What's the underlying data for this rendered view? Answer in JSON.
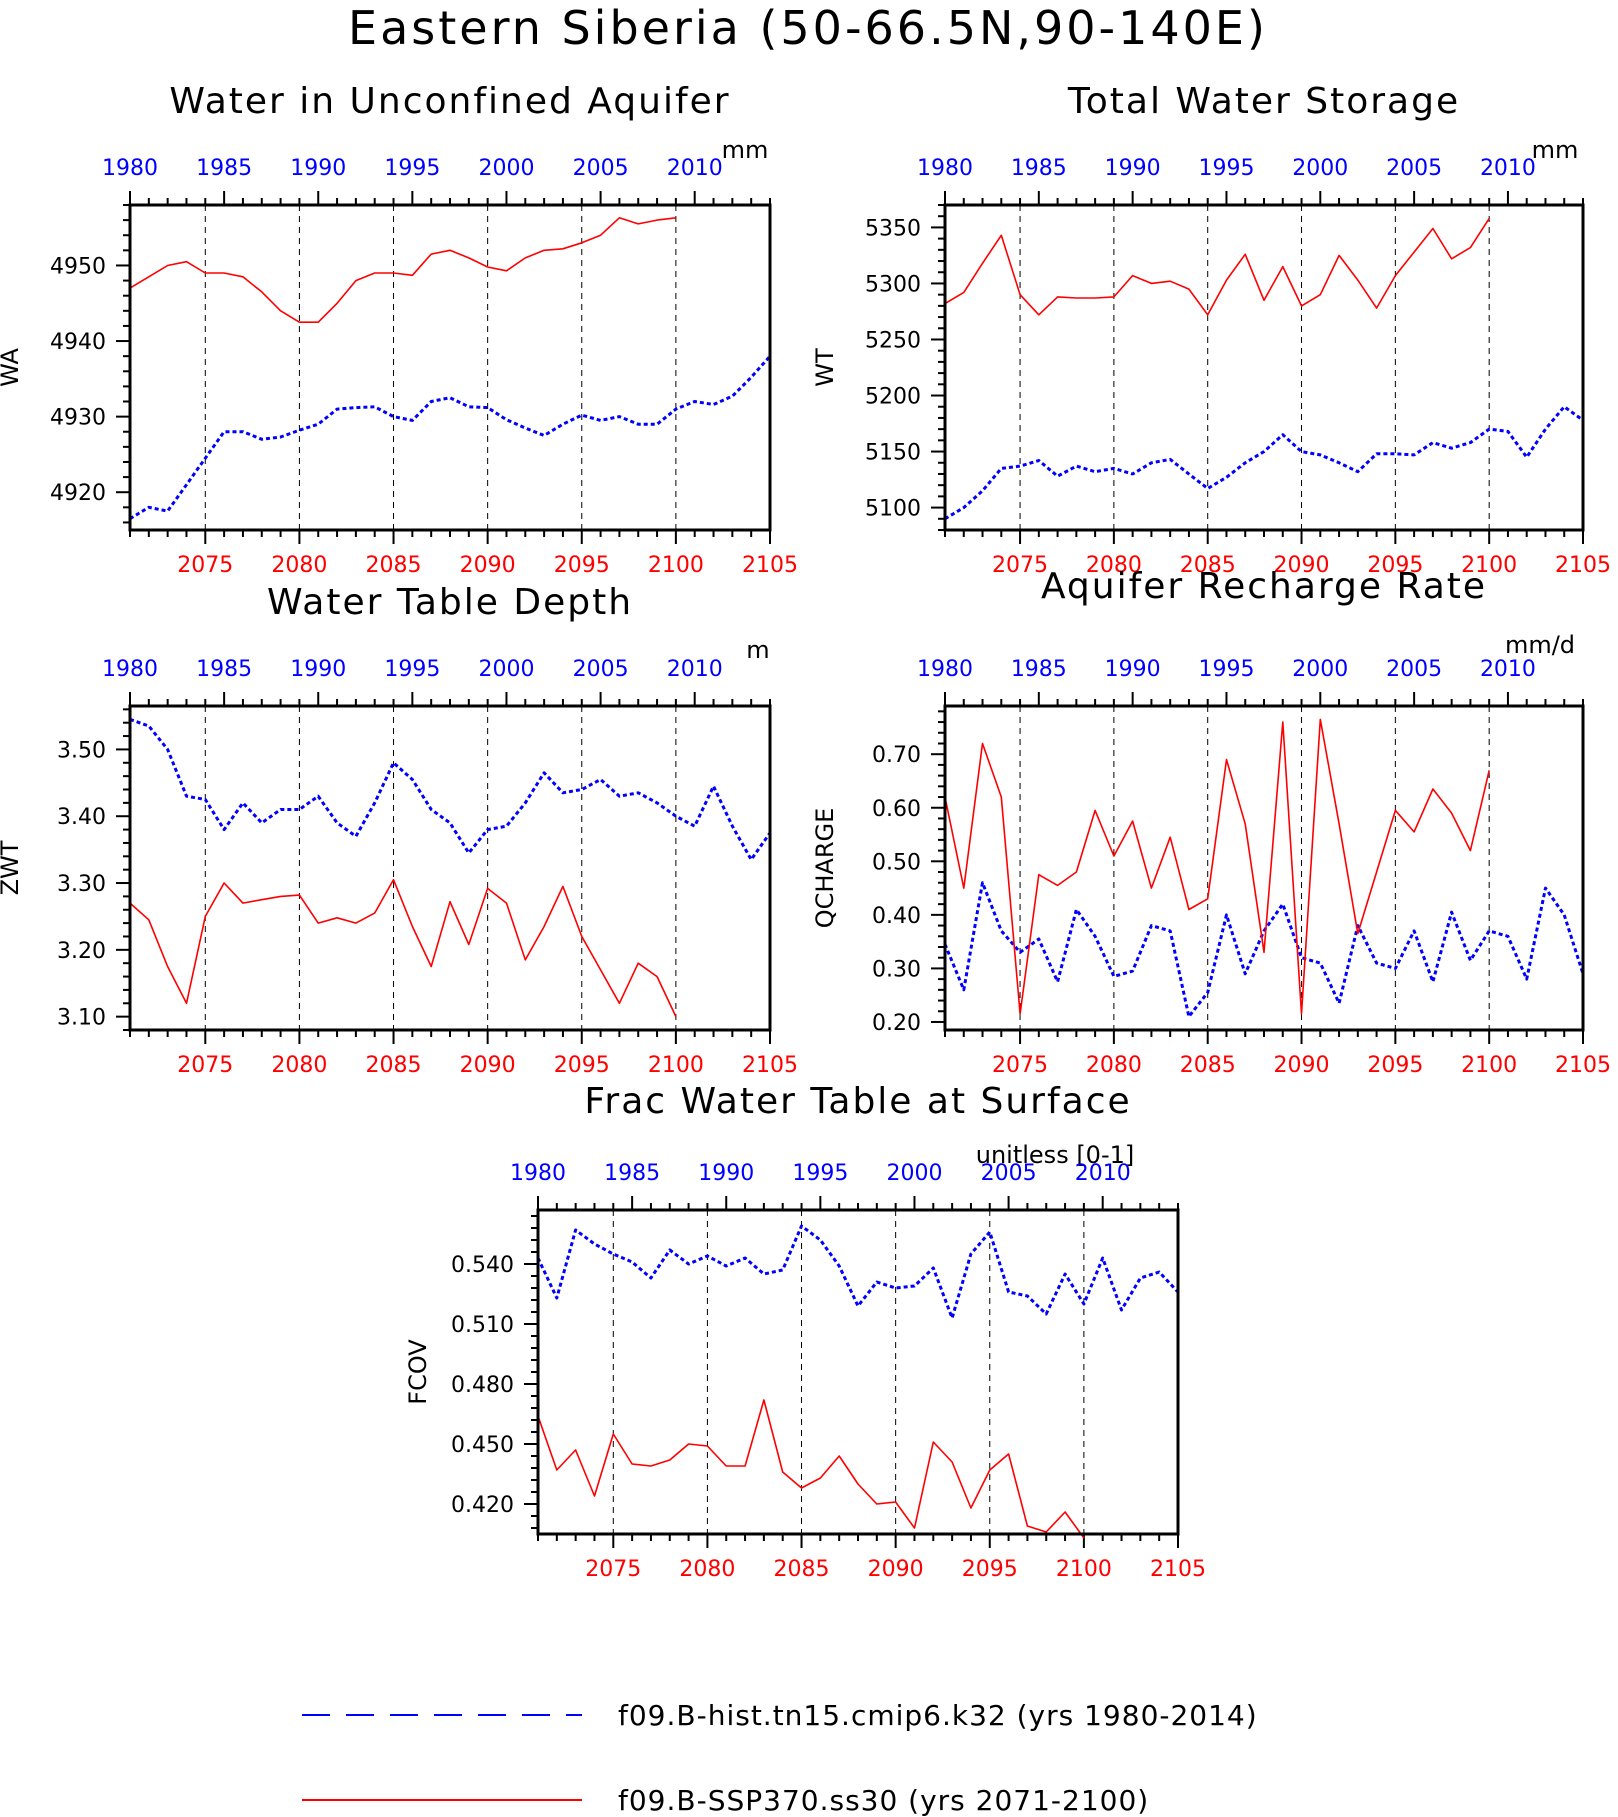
{
  "title": "Eastern Siberia (50-66.5N,90-140E)",
  "colors": {
    "hist": "#0000ff",
    "ssp": "#ff0000",
    "frame": "#000000",
    "grid": "#000000"
  },
  "legend": {
    "hist_label": "f09.B-hist.tn15.cmip6.k32 (yrs 1980-2014)",
    "ssp_label": "f09.B-SSP370.ss30 (yrs 2071-2100)"
  },
  "chart_data": [
    {
      "type": "line",
      "title": "Water in Unconfined Aquifer",
      "ylabel": "WA",
      "units": "mm",
      "xlim_bottom": [
        2071,
        2105
      ],
      "xlim_top": [
        1980,
        2014
      ],
      "ylim": [
        4915,
        4958
      ],
      "yticks": [
        4920,
        4930,
        4940,
        4950
      ],
      "ydecimals": 0,
      "grid": "dashed vertical at bottom-axis major ticks",
      "series": [
        {
          "name": "f09.B-hist.tn15.cmip6.k32 (yrs 1980-2014)",
          "axis": "top",
          "style": "dotted",
          "x": [
            1980,
            1981,
            1982,
            1983,
            1984,
            1985,
            1986,
            1987,
            1988,
            1989,
            1990,
            1991,
            1992,
            1993,
            1994,
            1995,
            1996,
            1997,
            1998,
            1999,
            2000,
            2001,
            2002,
            2003,
            2004,
            2005,
            2006,
            2007,
            2008,
            2009,
            2010,
            2011,
            2012,
            2013,
            2014
          ],
          "values": [
            4916.5,
            4918.0,
            4917.5,
            4921.0,
            4924.5,
            4928.0,
            4928.0,
            4927.0,
            4927.3,
            4928.2,
            4929.0,
            4931.0,
            4931.2,
            4931.3,
            4930.0,
            4929.5,
            4932.0,
            4932.5,
            4931.3,
            4931.2,
            4929.6,
            4928.5,
            4927.5,
            4929.0,
            4930.2,
            4929.5,
            4930.0,
            4929.0,
            4929.0,
            4931.0,
            4932.0,
            4931.6,
            4932.7,
            4935.2,
            4938.0
          ]
        },
        {
          "name": "f09.B-SSP370.ss30 (yrs 2071-2100)",
          "axis": "bottom",
          "style": "solid",
          "x": [
            2071,
            2072,
            2073,
            2074,
            2075,
            2076,
            2077,
            2078,
            2079,
            2080,
            2081,
            2082,
            2083,
            2084,
            2085,
            2086,
            2087,
            2088,
            2089,
            2090,
            2091,
            2092,
            2093,
            2094,
            2095,
            2096,
            2097,
            2098,
            2099,
            2100
          ],
          "values": [
            4947.0,
            4948.5,
            4950.0,
            4950.5,
            4949.0,
            4949.0,
            4948.5,
            4946.5,
            4944.0,
            4942.5,
            4942.5,
            4945.0,
            4948.0,
            4949.0,
            4949.0,
            4948.7,
            4951.5,
            4952.0,
            4951.0,
            4949.8,
            4949.3,
            4951.0,
            4952.0,
            4952.2,
            4953.0,
            4954.0,
            4956.3,
            4955.5,
            4956.0,
            4956.3
          ]
        }
      ]
    },
    {
      "type": "line",
      "title": "Total Water Storage",
      "ylabel": "WT",
      "units": "mm",
      "xlim_bottom": [
        2071,
        2105
      ],
      "xlim_top": [
        1980,
        2014
      ],
      "ylim": [
        5080,
        5370
      ],
      "yticks": [
        5100,
        5150,
        5200,
        5250,
        5300,
        5350
      ],
      "ydecimals": 0,
      "grid": "dashed vertical at bottom-axis major ticks",
      "series": [
        {
          "name": "f09.B-hist.tn15.cmip6.k32 (yrs 1980-2014)",
          "axis": "top",
          "style": "dotted",
          "x": [
            1980,
            1981,
            1982,
            1983,
            1984,
            1985,
            1986,
            1987,
            1988,
            1989,
            1990,
            1991,
            1992,
            1993,
            1994,
            1995,
            1996,
            1997,
            1998,
            1999,
            2000,
            2001,
            2002,
            2003,
            2004,
            2005,
            2006,
            2007,
            2008,
            2009,
            2010,
            2011,
            2012,
            2013,
            2014
          ],
          "values": [
            5090,
            5100,
            5115,
            5135,
            5137,
            5142,
            5128,
            5137,
            5132,
            5135,
            5130,
            5140,
            5143,
            5130,
            5117,
            5127,
            5140,
            5150,
            5165,
            5150,
            5147,
            5140,
            5132,
            5148,
            5148,
            5147,
            5158,
            5153,
            5158,
            5170,
            5168,
            5145,
            5170,
            5190,
            5178
          ]
        },
        {
          "name": "f09.B-SSP370.ss30 (yrs 2071-2100)",
          "axis": "bottom",
          "style": "solid",
          "x": [
            2071,
            2072,
            2073,
            2074,
            2075,
            2076,
            2077,
            2078,
            2079,
            2080,
            2081,
            2082,
            2083,
            2084,
            2085,
            2086,
            2087,
            2088,
            2089,
            2090,
            2091,
            2092,
            2093,
            2094,
            2095,
            2096,
            2097,
            2098,
            2099,
            2100
          ],
          "values": [
            5282,
            5292,
            5318,
            5343,
            5290,
            5272,
            5288,
            5287,
            5287,
            5288,
            5307,
            5300,
            5302,
            5295,
            5272,
            5303,
            5326,
            5285,
            5315,
            5280,
            5290,
            5325,
            5303,
            5278,
            5307,
            5328,
            5349,
            5322,
            5332,
            5358
          ]
        }
      ]
    },
    {
      "type": "line",
      "title": "Water Table Depth",
      "ylabel": "ZWT",
      "units": "m",
      "xlim_bottom": [
        2071,
        2105
      ],
      "xlim_top": [
        1980,
        2014
      ],
      "ylim": [
        3.08,
        3.565
      ],
      "yticks": [
        3.1,
        3.2,
        3.3,
        3.4,
        3.5
      ],
      "ydecimals": 2,
      "grid": "dashed vertical at bottom-axis major ticks",
      "series": [
        {
          "name": "f09.B-hist.tn15.cmip6.k32 (yrs 1980-2014)",
          "axis": "top",
          "style": "dotted",
          "x": [
            1980,
            1981,
            1982,
            1983,
            1984,
            1985,
            1986,
            1987,
            1988,
            1989,
            1990,
            1991,
            1992,
            1993,
            1994,
            1995,
            1996,
            1997,
            1998,
            1999,
            2000,
            2001,
            2002,
            2003,
            2004,
            2005,
            2006,
            2007,
            2008,
            2009,
            2010,
            2011,
            2012,
            2013,
            2014
          ],
          "values": [
            3.545,
            3.535,
            3.5,
            3.43,
            3.425,
            3.38,
            3.42,
            3.39,
            3.41,
            3.41,
            3.43,
            3.39,
            3.37,
            3.42,
            3.48,
            3.455,
            3.41,
            3.39,
            3.345,
            3.38,
            3.385,
            3.42,
            3.465,
            3.435,
            3.44,
            3.455,
            3.43,
            3.435,
            3.42,
            3.4,
            3.385,
            3.445,
            3.385,
            3.335,
            3.375
          ]
        },
        {
          "name": "f09.B-SSP370.ss30 (yrs 2071-2100)",
          "axis": "bottom",
          "style": "solid",
          "x": [
            2071,
            2072,
            2073,
            2074,
            2075,
            2076,
            2077,
            2078,
            2079,
            2080,
            2081,
            2082,
            2083,
            2084,
            2085,
            2086,
            2087,
            2088,
            2089,
            2090,
            2091,
            2092,
            2093,
            2094,
            2095,
            2096,
            2097,
            2098,
            2099,
            2100
          ],
          "values": [
            3.27,
            3.245,
            3.175,
            3.12,
            3.25,
            3.3,
            3.27,
            3.275,
            3.28,
            3.282,
            3.24,
            3.248,
            3.24,
            3.255,
            3.305,
            3.235,
            3.175,
            3.272,
            3.208,
            3.292,
            3.27,
            3.185,
            3.235,
            3.295,
            3.22,
            3.17,
            3.12,
            3.18,
            3.16,
            3.1
          ]
        }
      ]
    },
    {
      "type": "line",
      "title": "Aquifer Recharge Rate",
      "ylabel": "QCHARGE",
      "units": "mm/d",
      "xlim_bottom": [
        2071,
        2105
      ],
      "xlim_top": [
        1980,
        2014
      ],
      "ylim": [
        0.185,
        0.79
      ],
      "yticks": [
        0.2,
        0.3,
        0.4,
        0.5,
        0.6,
        0.7
      ],
      "ydecimals": 2,
      "grid": "dashed vertical at bottom-axis major ticks",
      "series": [
        {
          "name": "f09.B-hist.tn15.cmip6.k32 (yrs 1980-2014)",
          "axis": "top",
          "style": "dotted",
          "x": [
            1980,
            1981,
            1982,
            1983,
            1984,
            1985,
            1986,
            1987,
            1988,
            1989,
            1990,
            1991,
            1992,
            1993,
            1994,
            1995,
            1996,
            1997,
            1998,
            1999,
            2000,
            2001,
            2002,
            2003,
            2004,
            2005,
            2006,
            2007,
            2008,
            2009,
            2010,
            2011,
            2012,
            2013,
            2014
          ],
          "values": [
            0.345,
            0.26,
            0.46,
            0.37,
            0.33,
            0.355,
            0.275,
            0.41,
            0.36,
            0.285,
            0.295,
            0.38,
            0.37,
            0.21,
            0.255,
            0.4,
            0.29,
            0.37,
            0.42,
            0.32,
            0.31,
            0.235,
            0.38,
            0.31,
            0.3,
            0.37,
            0.275,
            0.405,
            0.315,
            0.37,
            0.36,
            0.28,
            0.45,
            0.4,
            0.29
          ]
        },
        {
          "name": "f09.B-SSP370.ss30 (yrs 2071-2100)",
          "axis": "bottom",
          "style": "solid",
          "x": [
            2071,
            2072,
            2073,
            2074,
            2075,
            2076,
            2077,
            2078,
            2079,
            2080,
            2081,
            2082,
            2083,
            2084,
            2085,
            2086,
            2087,
            2088,
            2089,
            2090,
            2091,
            2092,
            2093,
            2094,
            2095,
            2096,
            2097,
            2098,
            2099,
            2100
          ],
          "values": [
            0.62,
            0.45,
            0.72,
            0.62,
            0.215,
            0.475,
            0.455,
            0.48,
            0.595,
            0.51,
            0.575,
            0.45,
            0.545,
            0.41,
            0.43,
            0.69,
            0.57,
            0.33,
            0.76,
            0.215,
            0.765,
            0.57,
            0.365,
            0.48,
            0.595,
            0.555,
            0.635,
            0.59,
            0.52,
            0.67
          ]
        }
      ]
    },
    {
      "type": "line",
      "title": "Frac Water Table at Surface",
      "ylabel": "FCOV",
      "units": "unitless [0-1]",
      "xlim_bottom": [
        2071,
        2105
      ],
      "xlim_top": [
        1980,
        2014
      ],
      "ylim": [
        0.405,
        0.567
      ],
      "yticks": [
        0.42,
        0.45,
        0.48,
        0.51,
        0.54
      ],
      "ydecimals": 3,
      "grid": "dashed vertical at bottom-axis major ticks",
      "series": [
        {
          "name": "f09.B-hist.tn15.cmip6.k32 (yrs 1980-2014)",
          "axis": "top",
          "style": "dotted",
          "x": [
            1980,
            1981,
            1982,
            1983,
            1984,
            1985,
            1986,
            1987,
            1988,
            1989,
            1990,
            1991,
            1992,
            1993,
            1994,
            1995,
            1996,
            1997,
            1998,
            1999,
            2000,
            2001,
            2002,
            2003,
            2004,
            2005,
            2006,
            2007,
            2008,
            2009,
            2010,
            2011,
            2012,
            2013,
            2014
          ],
          "values": [
            0.543,
            0.523,
            0.557,
            0.55,
            0.545,
            0.541,
            0.533,
            0.547,
            0.54,
            0.544,
            0.539,
            0.543,
            0.535,
            0.537,
            0.559,
            0.552,
            0.539,
            0.519,
            0.531,
            0.528,
            0.529,
            0.538,
            0.513,
            0.545,
            0.556,
            0.526,
            0.524,
            0.515,
            0.535,
            0.52,
            0.543,
            0.517,
            0.533,
            0.536,
            0.526
          ]
        },
        {
          "name": "f09.B-SSP370.ss30 (yrs 2071-2100)",
          "axis": "bottom",
          "style": "solid",
          "x": [
            2071,
            2072,
            2073,
            2074,
            2075,
            2076,
            2077,
            2078,
            2079,
            2080,
            2081,
            2082,
            2083,
            2084,
            2085,
            2086,
            2087,
            2088,
            2089,
            2090,
            2091,
            2092,
            2093,
            2094,
            2095,
            2096,
            2097,
            2098,
            2099,
            2100
          ],
          "values": [
            0.464,
            0.437,
            0.447,
            0.424,
            0.455,
            0.44,
            0.439,
            0.442,
            0.45,
            0.449,
            0.439,
            0.439,
            0.472,
            0.436,
            0.428,
            0.433,
            0.444,
            0.43,
            0.42,
            0.421,
            0.408,
            0.451,
            0.441,
            0.418,
            0.437,
            0.445,
            0.409,
            0.406,
            0.416,
            0.403
          ]
        }
      ]
    }
  ]
}
